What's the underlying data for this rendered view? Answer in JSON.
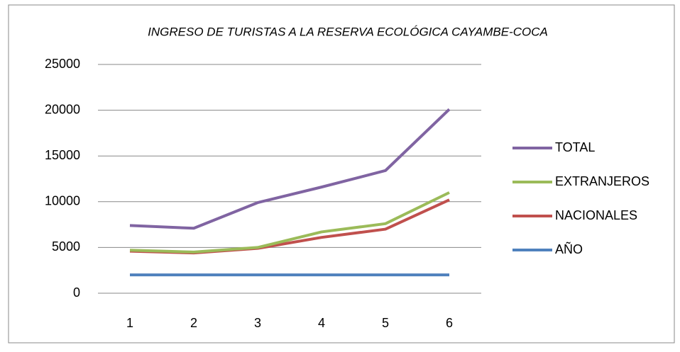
{
  "chart_data": {
    "type": "line",
    "title": "INGRESO DE TURISTAS A LA RESERVA ECOLÓGICA CAYAMBE-COCA",
    "categories": [
      1,
      2,
      3,
      4,
      5,
      6
    ],
    "series": [
      {
        "name": "TOTAL",
        "color": "#8064a2",
        "values": [
          7400,
          7100,
          9900,
          11600,
          13400,
          20100
        ]
      },
      {
        "name": "EXTRANJEROS",
        "color": "#9bbb59",
        "values": [
          4700,
          4500,
          5000,
          6700,
          7600,
          11000
        ]
      },
      {
        "name": "NACIONALES",
        "color": "#c0504d",
        "values": [
          4600,
          4400,
          4900,
          6100,
          7000,
          10200
        ]
      },
      {
        "name": "AÑO",
        "color": "#4f81bd",
        "values": [
          2000,
          2000,
          2000,
          2000,
          2000,
          2000
        ]
      }
    ],
    "ylim": [
      0,
      25000
    ],
    "yticks": [
      0,
      5000,
      10000,
      15000,
      20000,
      25000
    ],
    "grid": true,
    "legend": "right"
  }
}
